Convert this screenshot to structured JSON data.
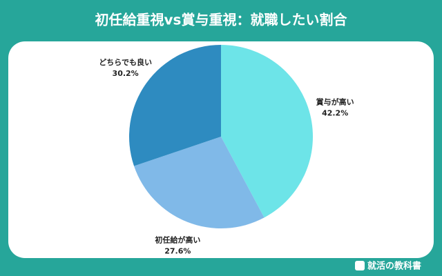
{
  "chart_data": {
    "type": "pie",
    "title": "初任給重視vs賞与重視：就職したい割合",
    "categories": [
      "賞与が高い",
      "初任給が高い",
      "どちらでも良い"
    ],
    "values": [
      42.2,
      27.6,
      30.2
    ],
    "value_labels": [
      "42.2%",
      "27.6%",
      "30.2%"
    ],
    "colors": [
      "#6de4e8",
      "#80b9e8",
      "#2e8bc0"
    ]
  },
  "brand": "就活の教科書"
}
